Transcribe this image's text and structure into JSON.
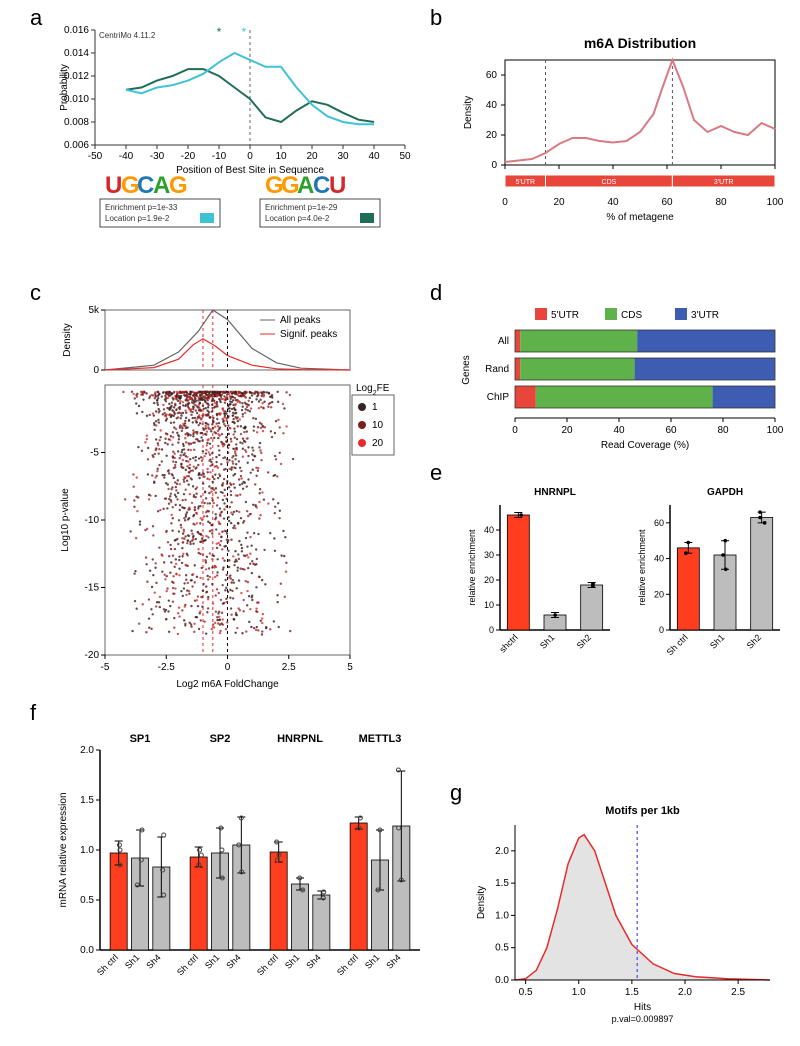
{
  "labels": {
    "a": "a",
    "b": "b",
    "c": "c",
    "d": "d",
    "e": "e",
    "f": "f",
    "g": "g"
  },
  "panelA": {
    "tool_label": "CentriMo 4.11.2",
    "xlabel": "Position of Best Site in Sequence",
    "ylabel": "Probability",
    "xlim": [
      -50,
      50
    ],
    "xticks": [
      -50,
      -40,
      -30,
      -20,
      -10,
      0,
      10,
      20,
      30,
      40,
      50
    ],
    "ylim": [
      0.006,
      0.016
    ],
    "yticks": [
      0.006,
      0.008,
      0.01,
      0.012,
      0.014,
      0.016
    ],
    "line1": {
      "color": "#3fc1d6",
      "points": [
        [
          -40,
          0.0108
        ],
        [
          -35,
          0.0105
        ],
        [
          -30,
          0.011
        ],
        [
          -25,
          0.0112
        ],
        [
          -20,
          0.0116
        ],
        [
          -15,
          0.0122
        ],
        [
          -10,
          0.0132
        ],
        [
          -5,
          0.014
        ],
        [
          0,
          0.0134
        ],
        [
          5,
          0.0128
        ],
        [
          10,
          0.0128
        ],
        [
          15,
          0.011
        ],
        [
          20,
          0.0095
        ],
        [
          25,
          0.0085
        ],
        [
          30,
          0.008
        ],
        [
          35,
          0.0078
        ],
        [
          40,
          0.0078
        ]
      ]
    },
    "line2": {
      "color": "#1f6d58",
      "points": [
        [
          -40,
          0.0108
        ],
        [
          -35,
          0.011
        ],
        [
          -30,
          0.0116
        ],
        [
          -25,
          0.012
        ],
        [
          -20,
          0.0126
        ],
        [
          -15,
          0.0126
        ],
        [
          -10,
          0.012
        ],
        [
          -5,
          0.011
        ],
        [
          0,
          0.01
        ],
        [
          5,
          0.0084
        ],
        [
          10,
          0.008
        ],
        [
          15,
          0.009
        ],
        [
          20,
          0.0098
        ],
        [
          25,
          0.0095
        ],
        [
          30,
          0.0088
        ],
        [
          35,
          0.0082
        ],
        [
          40,
          0.008
        ]
      ]
    },
    "star1_x": -2,
    "star1_color": "#3fc1d6",
    "star2_x": -10,
    "star2_color": "#1f6d58",
    "vline_x": 0,
    "motif1": {
      "letters": [
        {
          "ch": "U",
          "color": "#d62728"
        },
        {
          "ch": "G",
          "color": "#ff9900"
        },
        {
          "ch": "C",
          "color": "#1f77b4"
        },
        {
          "ch": "A",
          "color": "#2ca02c"
        },
        {
          "ch": "G",
          "color": "#ff9900"
        }
      ],
      "enrich_label": "Enrichment p=1e-33",
      "loc_label": "Location p=1.9e-2",
      "swatch_color": "#3fc1d6"
    },
    "motif2": {
      "letters": [
        {
          "ch": "G",
          "color": "#ff9900"
        },
        {
          "ch": "G",
          "color": "#ff9900"
        },
        {
          "ch": "A",
          "color": "#2ca02c"
        },
        {
          "ch": "C",
          "color": "#1f77b4"
        },
        {
          "ch": "U",
          "color": "#d62728"
        }
      ],
      "enrich_label": "Enrichment p=1e-29",
      "loc_label": "Location p=4.0e-2",
      "swatch_color": "#1f6d58"
    }
  },
  "panelB": {
    "title": "m6A Distribution",
    "xlabel": "% of metagene",
    "ylabel": "Density",
    "xlim": [
      0,
      100
    ],
    "xticks": [
      0,
      20,
      40,
      60,
      80,
      100
    ],
    "ylim": [
      0,
      70
    ],
    "yticks": [
      0,
      20,
      40,
      60
    ],
    "vline1_x": 15,
    "vline2_x": 62,
    "line_color": "#d97a83",
    "points": [
      [
        0,
        2
      ],
      [
        5,
        3
      ],
      [
        10,
        4
      ],
      [
        15,
        8
      ],
      [
        20,
        14
      ],
      [
        25,
        18
      ],
      [
        30,
        18
      ],
      [
        35,
        16
      ],
      [
        40,
        15
      ],
      [
        45,
        16
      ],
      [
        50,
        22
      ],
      [
        55,
        34
      ],
      [
        58,
        50
      ],
      [
        62,
        70
      ],
      [
        66,
        52
      ],
      [
        70,
        30
      ],
      [
        75,
        22
      ],
      [
        80,
        26
      ],
      [
        85,
        22
      ],
      [
        90,
        20
      ],
      [
        95,
        28
      ],
      [
        100,
        24
      ]
    ],
    "track_label_1": "5'UTR",
    "track_label_2": "CDS",
    "track_label_3": "3'UTR",
    "track_color": "#e8463a"
  },
  "panelC": {
    "xlabel": "Log2 m6A FoldChange",
    "ylabel": "Log10 p-value",
    "dens_label": "Density",
    "xlim": [
      -5,
      5
    ],
    "xticks": [
      -5,
      -2.5,
      0,
      2.5,
      5
    ],
    "ylim": [
      -20,
      0
    ],
    "yticks": [
      -20,
      -15,
      -10,
      -5
    ],
    "legend_all": "All peaks",
    "legend_sig": "Signif. peaks",
    "legend_fe": "Log",
    "legend_fe_sub": "2",
    "legend_fe_suffix": "FE",
    "fe_vals": [
      "1",
      "10",
      "20"
    ],
    "fe_colors": [
      "#362424",
      "#7a1f1f",
      "#e82a2a"
    ],
    "density_all_color": "#666666",
    "density_sig_color": "#e82a2a",
    "density_all": [
      [
        -5,
        0
      ],
      [
        -3,
        400
      ],
      [
        -2,
        1500
      ],
      [
        -1.2,
        3200
      ],
      [
        -0.6,
        5000
      ],
      [
        0,
        4200
      ],
      [
        1,
        1800
      ],
      [
        2,
        600
      ],
      [
        3,
        150
      ],
      [
        5,
        0
      ]
    ],
    "density_sig": [
      [
        -5,
        0
      ],
      [
        -3,
        200
      ],
      [
        -2,
        900
      ],
      [
        -1.4,
        2100
      ],
      [
        -1,
        2600
      ],
      [
        -0.5,
        2000
      ],
      [
        0,
        1200
      ],
      [
        1,
        400
      ],
      [
        2,
        100
      ],
      [
        3,
        30
      ],
      [
        5,
        0
      ]
    ],
    "dens_ylim": [
      0,
      5000
    ],
    "dens_yticks": [
      0,
      5000
    ],
    "dens_yticklabels": [
      "0",
      "5k"
    ],
    "vline_black": 0,
    "vline_red1": -0.6,
    "vline_red2": -1.0,
    "scatter_colors": [
      "#3a1c1c",
      "#5c1c1c",
      "#7a1f1f",
      "#a02525",
      "#c82a2a",
      "#e82a2a"
    ]
  },
  "panelD": {
    "ylabel": "Genes",
    "xlabel": "Read Coverage (%)",
    "xticks": [
      0,
      20,
      40,
      60,
      80,
      100
    ],
    "legend": [
      {
        "label": "5'UTR",
        "color": "#e8463a"
      },
      {
        "label": "CDS",
        "color": "#5fb24a"
      },
      {
        "label": "3'UTR",
        "color": "#3c5db2"
      }
    ],
    "rows": [
      {
        "label": "All",
        "seg": [
          2,
          45,
          53
        ]
      },
      {
        "label": "Rand",
        "seg": [
          2,
          44,
          54
        ]
      },
      {
        "label": "ChIP",
        "seg": [
          8,
          68,
          24
        ]
      }
    ]
  },
  "panelE": {
    "ylabel": "relative enrichment",
    "charts": [
      {
        "title": "HNRNPL",
        "ylim": [
          0,
          50
        ],
        "yticks": [
          0,
          10,
          20,
          30,
          40
        ],
        "bars": [
          {
            "label": "shctrl",
            "value": 46,
            "color": "#ff3d1f",
            "err": 1,
            "pts": [
              46
            ]
          },
          {
            "label": "Sh1",
            "value": 6,
            "color": "#bdbdbd",
            "err": 1,
            "pts": [
              6
            ]
          },
          {
            "label": "Sh2",
            "value": 18,
            "color": "#bdbdbd",
            "err": 1,
            "pts": [
              17.5,
              18.5
            ]
          }
        ]
      },
      {
        "title": "GAPDH",
        "ylim": [
          0,
          70
        ],
        "yticks": [
          0,
          20,
          40,
          60
        ],
        "bars": [
          {
            "label": "Sh ctrl",
            "value": 46,
            "color": "#ff3d1f",
            "err": 3,
            "pts": [
              43,
              49
            ]
          },
          {
            "label": "Sh1",
            "value": 42,
            "color": "#bdbdbd",
            "err": 8,
            "pts": [
              34,
              50,
              42
            ]
          },
          {
            "label": "Sh2",
            "value": 63,
            "color": "#bdbdbd",
            "err": 3,
            "pts": [
              60,
              66,
              63
            ]
          }
        ]
      }
    ]
  },
  "panelF": {
    "ylabel": "mRNA relative expression",
    "ylim": [
      0,
      2.0
    ],
    "yticks": [
      0.0,
      0.5,
      1.0,
      1.5,
      2.0
    ],
    "groups": [
      {
        "title": "SP1",
        "bars": [
          {
            "label": "Sh ctrl",
            "value": 0.97,
            "color": "#ff3d1f",
            "err": 0.12,
            "pts": [
              0.85,
              1.05,
              1.0
            ]
          },
          {
            "label": "Sh1",
            "value": 0.92,
            "color": "#bdbdbd",
            "err": 0.28,
            "pts": [
              0.65,
              1.2,
              0.9
            ]
          },
          {
            "label": "Sh4",
            "value": 0.83,
            "color": "#bdbdbd",
            "err": 0.3,
            "pts": [
              0.55,
              1.15,
              0.8
            ]
          }
        ]
      },
      {
        "title": "SP2",
        "bars": [
          {
            "label": "Sh ctrl",
            "value": 0.93,
            "color": "#ff3d1f",
            "err": 0.1,
            "pts": [
              0.85,
              1.0,
              0.95
            ]
          },
          {
            "label": "Sh1",
            "value": 0.97,
            "color": "#bdbdbd",
            "err": 0.25,
            "pts": [
              0.72,
              1.22,
              1.0
            ]
          },
          {
            "label": "Sh4",
            "value": 1.05,
            "color": "#bdbdbd",
            "err": 0.28,
            "pts": [
              0.78,
              1.32,
              1.05
            ]
          }
        ]
      },
      {
        "title": "HNRPNL",
        "bars": [
          {
            "label": "Sh ctrl",
            "value": 0.98,
            "color": "#ff3d1f",
            "err": 0.1,
            "pts": [
              0.9,
              1.08,
              0.95
            ]
          },
          {
            "label": "Sh1",
            "value": 0.66,
            "color": "#bdbdbd",
            "err": 0.06,
            "pts": [
              0.6,
              0.72
            ]
          },
          {
            "label": "Sh4",
            "value": 0.55,
            "color": "#bdbdbd",
            "err": 0.04,
            "pts": [
              0.52,
              0.58
            ]
          }
        ]
      },
      {
        "title": "METTL3",
        "bars": [
          {
            "label": "Sh ctrl",
            "value": 1.27,
            "color": "#ff3d1f",
            "err": 0.06,
            "pts": [
              1.22,
              1.32
            ]
          },
          {
            "label": "Sh1",
            "value": 0.9,
            "color": "#bdbdbd",
            "err": 0.3,
            "pts": [
              0.6,
              1.2
            ]
          },
          {
            "label": "Sh4",
            "value": 1.24,
            "color": "#bdbdbd",
            "err": 0.55,
            "pts": [
              0.7,
              1.8,
              1.22
            ]
          }
        ]
      }
    ]
  },
  "panelG": {
    "title": "Motifs per 1kb",
    "xlabel": "Hits",
    "ylabel": "Density",
    "pval": "p.val=0.009897",
    "xlim": [
      0.4,
      2.8
    ],
    "xticks": [
      0.5,
      1.0,
      1.5,
      2.0,
      2.5
    ],
    "ylim": [
      0,
      2.4
    ],
    "yticks": [
      0.0,
      0.5,
      1.0,
      1.5,
      2.0
    ],
    "vline_x": 1.55,
    "vline_color": "#4a4ae6",
    "line_color": "#e82a2a",
    "fill_color": "#e3e3e3",
    "points": [
      [
        0.4,
        0
      ],
      [
        0.5,
        0.02
      ],
      [
        0.6,
        0.15
      ],
      [
        0.7,
        0.5
      ],
      [
        0.8,
        1.1
      ],
      [
        0.9,
        1.8
      ],
      [
        1.0,
        2.2
      ],
      [
        1.05,
        2.25
      ],
      [
        1.15,
        2.0
      ],
      [
        1.25,
        1.5
      ],
      [
        1.35,
        1.0
      ],
      [
        1.5,
        0.55
      ],
      [
        1.7,
        0.25
      ],
      [
        1.9,
        0.1
      ],
      [
        2.1,
        0.05
      ],
      [
        2.4,
        0.02
      ],
      [
        2.8,
        0
      ]
    ]
  }
}
